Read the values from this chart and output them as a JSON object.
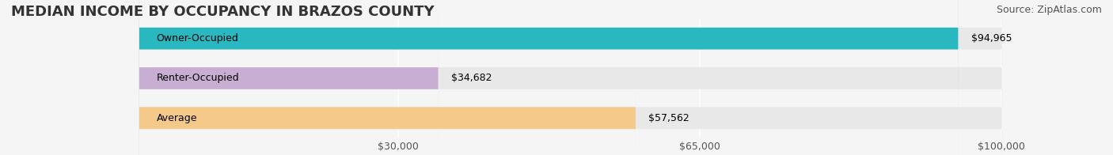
{
  "title": "MEDIAN INCOME BY OCCUPANCY IN BRAZOS COUNTY",
  "source": "Source: ZipAtlas.com",
  "categories": [
    "Owner-Occupied",
    "Renter-Occupied",
    "Average"
  ],
  "values": [
    94965,
    34682,
    57562
  ],
  "bar_colors": [
    "#29b8c0",
    "#c9aed4",
    "#f5c98a"
  ],
  "bar_edge_colors": [
    "#29b8c0",
    "#c9aed4",
    "#f5c98a"
  ],
  "value_labels": [
    "$94,965",
    "$34,682",
    "$57,562"
  ],
  "xlim": [
    0,
    100000
  ],
  "xticks": [
    30000,
    65000,
    100000
  ],
  "xticklabels": [
    "$30,000",
    "$65,000",
    "$100,000"
  ],
  "background_color": "#f5f5f5",
  "bar_background_color": "#e8e8e8",
  "title_fontsize": 13,
  "source_fontsize": 9,
  "label_fontsize": 9,
  "value_fontsize": 9,
  "tick_fontsize": 9,
  "bar_height": 0.55,
  "figsize": [
    14.06,
    1.96
  ]
}
